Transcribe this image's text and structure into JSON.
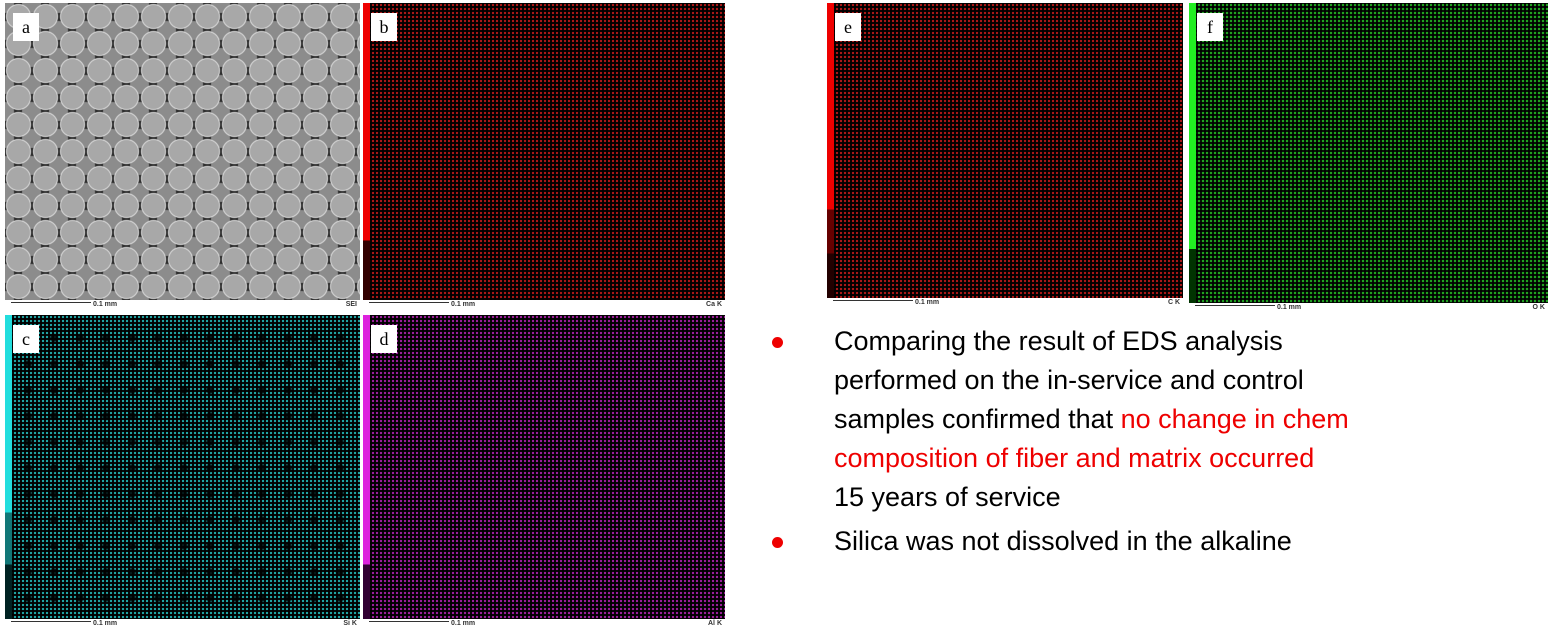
{
  "panels": [
    {
      "letter": "a",
      "scale": "0.1 mm",
      "detector": "SEI"
    },
    {
      "letter": "b",
      "scale": "0.1 mm",
      "detector": "Ca K"
    },
    {
      "letter": "c",
      "scale": "0.1 mm",
      "detector": "Si K"
    },
    {
      "letter": "d",
      "scale": "0.1 mm",
      "detector": "Al K"
    },
    {
      "letter": "e",
      "scale": "0.1 mm",
      "detector": "C K"
    },
    {
      "letter": "f",
      "scale": "0.1 mm",
      "detector": "O K"
    }
  ],
  "bullets": [
    {
      "lines": [
        "Comparing the result of EDS analysis",
        "performed on the in-service and control",
        "samples confirmed that "
      ],
      "highlight": [
        "no change in chem",
        "composition of fiber and matrix occurred"
      ],
      "tail": "15 years of service"
    },
    {
      "lines": [
        "Silica was not dissolved in the alkaline"
      ]
    }
  ]
}
